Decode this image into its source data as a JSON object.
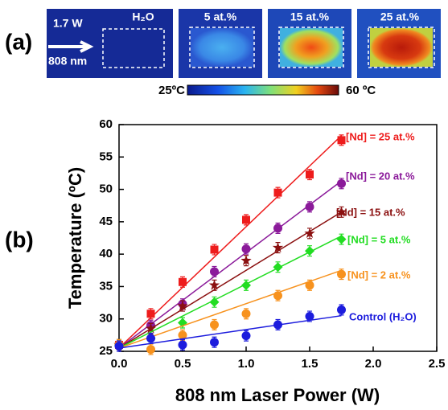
{
  "panel_a": {
    "label": "(a)",
    "power": "1.7 W",
    "wavelength": "808 nm",
    "images": [
      "H₂O",
      "5 at.%",
      "15 at.%",
      "25 at.%"
    ],
    "colorbar": {
      "min_label": "25ºC",
      "max_label": "60 ºC"
    }
  },
  "chart_data": {
    "type": "scatter",
    "panel_label": "(b)",
    "x_label": "808 nm Laser Power  (W)",
    "y_label": "Temperature (ºC)",
    "xlim": [
      0,
      2.5
    ],
    "ylim": [
      25,
      60
    ],
    "xticks": [
      {
        "value": 0,
        "label": "0.0"
      },
      0.5,
      {
        "value": 1,
        "label": "1.0"
      },
      1.5,
      {
        "value": 2,
        "label": "2.0"
      },
      2.5
    ],
    "yticks": [
      25,
      30,
      35,
      40,
      45,
      50,
      55,
      60
    ],
    "x": [
      0,
      0.25,
      0.5,
      0.75,
      1.0,
      1.25,
      1.5,
      1.75
    ],
    "series": [
      {
        "name": "[Nd] = 25 at.%",
        "color": "#ee1c1c",
        "marker": "square",
        "values": [
          26,
          30.8,
          35.7,
          40.7,
          45.3,
          49.5,
          52.3,
          57.6
        ],
        "errors": [
          0.8,
          0.8,
          0.8,
          0.8,
          0.8,
          0.8,
          0.8,
          0.8
        ],
        "fit": {
          "x": [
            0,
            1.75
          ],
          "y": [
            25.5,
            58.3
          ]
        }
      },
      {
        "name": "[Nd] = 20 at.%",
        "color": "#8b1a9a",
        "marker": "circle",
        "values": [
          26,
          29,
          32.3,
          37.3,
          40.8,
          44,
          47.3,
          50.9
        ],
        "errors": [
          0.8,
          0.8,
          0.8,
          0.8,
          0.8,
          0.8,
          0.8,
          0.8
        ],
        "fit": {
          "x": [
            0,
            1.75
          ],
          "y": [
            25.5,
            51.3
          ]
        }
      },
      {
        "name": "[Nd] = 15 at.%",
        "color": "#8b1010",
        "marker": "star",
        "values": [
          26,
          28.5,
          32,
          35.2,
          39,
          41,
          43.2,
          46.5
        ],
        "errors": [
          0.8,
          0.8,
          0.8,
          0.8,
          0.8,
          0.8,
          0.8,
          0.8
        ],
        "fit": {
          "x": [
            0,
            1.75
          ],
          "y": [
            25.5,
            46.5
          ]
        }
      },
      {
        "name": "[Nd] = 5 at.%",
        "color": "#22dd22",
        "marker": "diamond",
        "values": [
          26,
          27,
          29.4,
          32.6,
          35.2,
          38,
          40.5,
          42.3
        ],
        "errors": [
          0.8,
          0.8,
          0.8,
          0.8,
          0.8,
          0.8,
          0.8,
          0.8
        ],
        "fit": {
          "x": [
            0,
            1.75
          ],
          "y": [
            25.5,
            42.8
          ]
        }
      },
      {
        "name": "[Nd] = 2 at.%",
        "color": "#f7921e",
        "marker": "circle",
        "values": [
          26,
          25.3,
          27.5,
          29.1,
          30.8,
          33.6,
          35.2,
          36.9
        ],
        "errors": [
          0.8,
          0.8,
          0.8,
          0.8,
          0.8,
          0.8,
          0.8,
          0.8
        ],
        "fit": {
          "x": [
            0,
            1.75
          ],
          "y": [
            25.5,
            37.5
          ]
        }
      },
      {
        "name": "Control (H₂O)",
        "color": "#1c1cdd",
        "marker": "circle",
        "values": [
          25.8,
          27,
          26,
          26.4,
          27.4,
          29.1,
          30.4,
          31.4
        ],
        "errors": [
          0.8,
          0.8,
          0.8,
          0.8,
          0.8,
          0.8,
          0.8,
          0.8
        ],
        "fit": {
          "x": [
            0,
            1.75
          ],
          "y": [
            25.5,
            30.5
          ]
        }
      }
    ]
  }
}
